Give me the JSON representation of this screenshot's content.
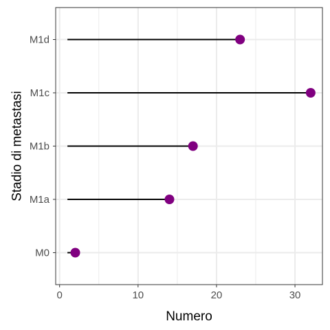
{
  "chart_data": {
    "type": "lollipop",
    "xlabel": "Numero",
    "ylabel": "Stadio di metastasi",
    "categories": [
      "M0",
      "M1a",
      "M1b",
      "M1c",
      "M1d"
    ],
    "values": [
      2,
      14,
      17,
      32,
      23
    ],
    "stem_start": 1,
    "xlim": [
      -0.5,
      33.5
    ],
    "x_ticks": [
      0,
      10,
      20,
      30
    ],
    "x_minor_ticks": [
      5,
      15,
      25
    ],
    "grid": true,
    "colors": {
      "point": "#800080",
      "stem": "#000000",
      "grid": "#ebebeb",
      "panel_border": "#333333"
    }
  }
}
